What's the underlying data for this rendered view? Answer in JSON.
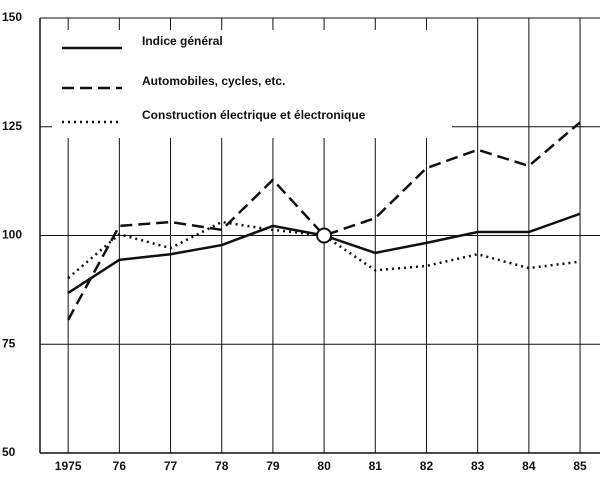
{
  "chart_data": {
    "type": "line",
    "x": [
      1975,
      1976,
      1977,
      1978,
      1979,
      1980,
      1981,
      1982,
      1983,
      1984,
      1985
    ],
    "series": [
      {
        "name": "Indice général",
        "color": "#111111",
        "style": "solid",
        "values": [
          86.8,
          94.4,
          95.7,
          97.8,
          102.2,
          100,
          96,
          98.3,
          100.8,
          100.8,
          105
        ]
      },
      {
        "name": "Automobiles, cycles, etc.",
        "color": "#111111",
        "style": "dashed",
        "values": [
          80.6,
          102.2,
          103.1,
          101.3,
          112.8,
          100,
          104,
          115.5,
          119.7,
          116,
          126
        ]
      },
      {
        "name": "Construction électrique et électronique",
        "color": "#111111",
        "style": "dotted",
        "values": [
          90.2,
          100.3,
          97.1,
          103.1,
          101.3,
          100,
          92,
          93,
          95.7,
          92.5,
          94
        ]
      }
    ],
    "xlim": [
      1974.45,
      1985.39
    ],
    "xticks": [
      {
        "value": 1975,
        "label": "1975"
      },
      {
        "value": 1976,
        "label": "76"
      },
      {
        "value": 1977,
        "label": "77"
      },
      {
        "value": 1978,
        "label": "78"
      },
      {
        "value": 1979,
        "label": "79"
      },
      {
        "value": 1980,
        "label": "80"
      },
      {
        "value": 1981,
        "label": "81"
      },
      {
        "value": 1982,
        "label": "82"
      },
      {
        "value": 1983,
        "label": "83"
      },
      {
        "value": 1984,
        "label": "84"
      },
      {
        "value": 1985,
        "label": "85"
      }
    ],
    "ylim": [
      50,
      150
    ],
    "yticks": [
      50,
      75,
      100,
      125,
      150
    ],
    "grid": true,
    "legend": "upper left"
  }
}
